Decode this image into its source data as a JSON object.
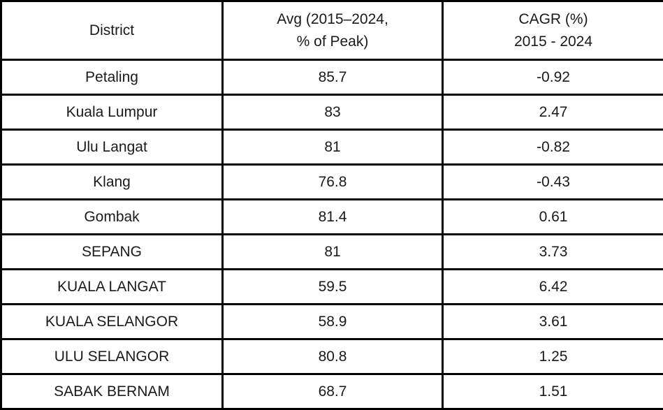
{
  "table": {
    "columns": [
      {
        "label": "District"
      },
      {
        "label": "Avg (2015–2024,\n% of Peak)"
      },
      {
        "label": "CAGR (%)\n2015 - 2024"
      }
    ],
    "rows": [
      {
        "district": "Petaling",
        "avg": "85.7",
        "cagr": "-0.92"
      },
      {
        "district": "Kuala Lumpur",
        "avg": "83",
        "cagr": "2.47"
      },
      {
        "district": "Ulu Langat",
        "avg": "81",
        "cagr": "-0.82"
      },
      {
        "district": "Klang",
        "avg": "76.8",
        "cagr": "-0.43"
      },
      {
        "district": "Gombak",
        "avg": "81.4",
        "cagr": "0.61"
      },
      {
        "district": "SEPANG",
        "avg": "81",
        "cagr": "3.73"
      },
      {
        "district": "KUALA LANGAT",
        "avg": "59.5",
        "cagr": "6.42"
      },
      {
        "district": "KUALA SELANGOR",
        "avg": "58.9",
        "cagr": "3.61"
      },
      {
        "district": "ULU SELANGOR",
        "avg": "80.8",
        "cagr": "1.25"
      },
      {
        "district": "SABAK BERNAM",
        "avg": "68.7",
        "cagr": "1.51"
      }
    ]
  },
  "colors": {
    "border": "#000000",
    "text": "#1a1a1a",
    "background": "#ffffff"
  }
}
